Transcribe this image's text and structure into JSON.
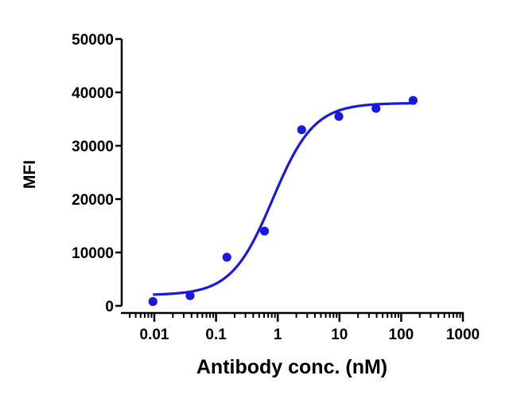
{
  "chart_data": {
    "type": "scatter",
    "title": "",
    "xlabel": "Antibody conc. (nM)",
    "ylabel": "MFI",
    "x_scale": "log",
    "xlim": [
      0.005,
      1000
    ],
    "ylim": [
      0,
      50000
    ],
    "x_ticks": [
      0.01,
      0.1,
      1,
      10,
      100,
      1000
    ],
    "x_tick_labels": [
      "0.01",
      "0.1",
      "1",
      "10",
      "100",
      "1000"
    ],
    "y_ticks": [
      0,
      10000,
      20000,
      30000,
      40000,
      50000
    ],
    "y_tick_labels": [
      "0",
      "10000",
      "20000",
      "30000",
      "40000",
      "50000"
    ],
    "grid": false,
    "legend": "none",
    "color": "#1a1adc",
    "series": [
      {
        "x": [
          0.0095,
          0.038,
          0.15,
          0.61,
          2.44,
          9.77,
          39.1,
          156
        ],
        "y": [
          800,
          1900,
          9100,
          14000,
          33000,
          35500,
          37000,
          38500
        ]
      }
    ],
    "fit_curve": {
      "model": "4PL",
      "bottom": 2000,
      "top": 38000,
      "ec50": 0.83,
      "hill": 1.3,
      "x_range": [
        0.0095,
        156
      ]
    }
  }
}
